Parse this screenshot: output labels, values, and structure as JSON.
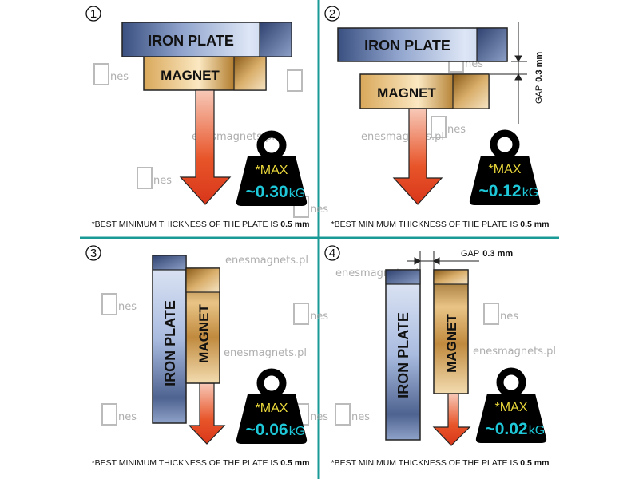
{
  "colors": {
    "divider": "#1a9a96",
    "iron": "#9fb2d8",
    "magnet": "#c99a4a",
    "arrow": "#e0451e",
    "weight": "#000000",
    "max_text": "#e8d63a",
    "value_text": "#1ec8d8"
  },
  "watermark": {
    "site": "enesmagnets.pl",
    "logo": "nes"
  },
  "panels": [
    {
      "number": "1",
      "iron_label": "IRON PLATE",
      "magnet_label": "MAGNET",
      "max_label": "*MAX",
      "value": "~0.30",
      "unit": "kG",
      "footer": "*BEST MINIMUM THICKNESS OF THE PLATE IS ",
      "footer_bold": "0.5 mm"
    },
    {
      "number": "2",
      "iron_label": "IRON PLATE",
      "magnet_label": "MAGNET",
      "max_label": "*MAX",
      "value": "~0.12",
      "unit": "kG",
      "gap_label": "GAP",
      "gap_value": "0.3 mm",
      "footer": "*BEST MINIMUM THICKNESS OF THE PLATE IS ",
      "footer_bold": "0.5 mm"
    },
    {
      "number": "3",
      "iron_label": "IRON  PLATE",
      "magnet_label": "MAGNET",
      "max_label": "*MAX",
      "value": "~0.06",
      "unit": "kG",
      "footer": "*BEST MINIMUM THICKNESS OF THE PLATE IS ",
      "footer_bold": "0.5 mm"
    },
    {
      "number": "4",
      "iron_label": "IRON PLATE",
      "magnet_label": "MAGNET",
      "max_label": "*MAX",
      "value": "~0.02",
      "unit": "kG",
      "gap_label": "GAP",
      "gap_value": "0.3 mm",
      "footer": "*BEST MINIMUM THICKNESS OF THE PLATE IS ",
      "footer_bold": "0.5 mm"
    }
  ]
}
